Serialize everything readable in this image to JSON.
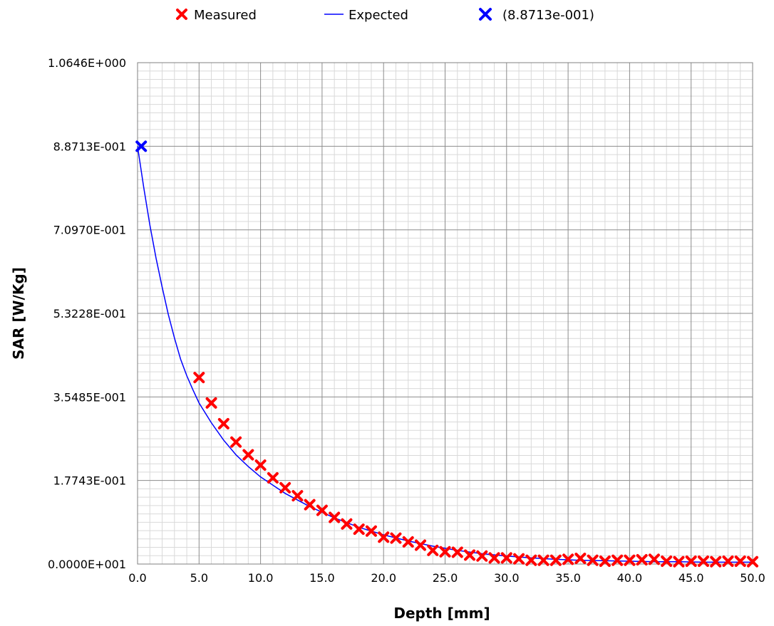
{
  "chart_data": {
    "type": "scatter",
    "xlabel": "Depth [mm]",
    "ylabel": "SAR [W/Kg]",
    "xlim": [
      0,
      50
    ],
    "ylim": [
      0,
      1.0646
    ],
    "x_ticks": [
      0,
      5,
      10,
      15,
      20,
      25,
      30,
      35,
      40,
      45,
      50
    ],
    "x_tick_labels": [
      "0.0",
      "5.0",
      "10.0",
      "15.0",
      "20.0",
      "25.0",
      "30.0",
      "35.0",
      "40.0",
      "45.0",
      "50.0"
    ],
    "y_ticks": [
      0,
      0.17743,
      0.35485,
      0.53228,
      0.7097,
      0.88713,
      1.0646
    ],
    "y_tick_labels": [
      "0.0000E+001",
      "1.7743E-001",
      "3.5485E-001",
      "5.3228E-001",
      "7.0970E-001",
      "8.8713E-001",
      "1.0646E+000"
    ],
    "grid": true,
    "legend_position": "top",
    "series": [
      {
        "name": "Measured",
        "kind": "marker",
        "color": "#ff0000",
        "x": [
          5,
          6,
          7,
          8,
          9,
          10,
          11,
          12,
          13,
          14,
          15,
          16,
          17,
          18,
          19,
          20,
          21,
          22,
          23,
          24,
          25,
          26,
          27,
          28,
          29,
          30,
          31,
          32,
          33,
          34,
          35,
          36,
          37,
          38,
          39,
          40,
          41,
          42,
          43,
          44,
          45,
          46,
          47,
          48,
          49,
          50
        ],
        "y": [
          0.396,
          0.342,
          0.298,
          0.259,
          0.232,
          0.21,
          0.183,
          0.162,
          0.145,
          0.126,
          0.114,
          0.099,
          0.085,
          0.074,
          0.07,
          0.057,
          0.055,
          0.047,
          0.04,
          0.029,
          0.026,
          0.025,
          0.019,
          0.017,
          0.013,
          0.013,
          0.011,
          0.008,
          0.008,
          0.008,
          0.01,
          0.012,
          0.008,
          0.006,
          0.008,
          0.008,
          0.009,
          0.01,
          0.006,
          0.005,
          0.006,
          0.006,
          0.005,
          0.006,
          0.006,
          0.005
        ]
      },
      {
        "name": "Expected",
        "kind": "line",
        "color": "#0000ff",
        "x": [
          0,
          0.5,
          1,
          1.5,
          2,
          2.5,
          3,
          3.5,
          4,
          4.5,
          5,
          6,
          7,
          8,
          9,
          10,
          12,
          14,
          16,
          18,
          20,
          22,
          24,
          26,
          28,
          30,
          32,
          34,
          36,
          38,
          40,
          42,
          44,
          46,
          48,
          50
        ],
        "y": [
          0.887,
          0.8,
          0.72,
          0.65,
          0.588,
          0.53,
          0.48,
          0.435,
          0.4,
          0.37,
          0.342,
          0.3,
          0.263,
          0.232,
          0.207,
          0.185,
          0.15,
          0.122,
          0.098,
          0.078,
          0.062,
          0.049,
          0.038,
          0.029,
          0.022,
          0.017,
          0.013,
          0.01,
          0.008,
          0.007,
          0.006,
          0.005,
          0.005,
          0.004,
          0.004,
          0.004
        ]
      },
      {
        "name": "(8.8713e-001)",
        "kind": "marker",
        "color": "#0000ff",
        "x": [
          0.3
        ],
        "y": [
          0.88713
        ]
      }
    ]
  }
}
